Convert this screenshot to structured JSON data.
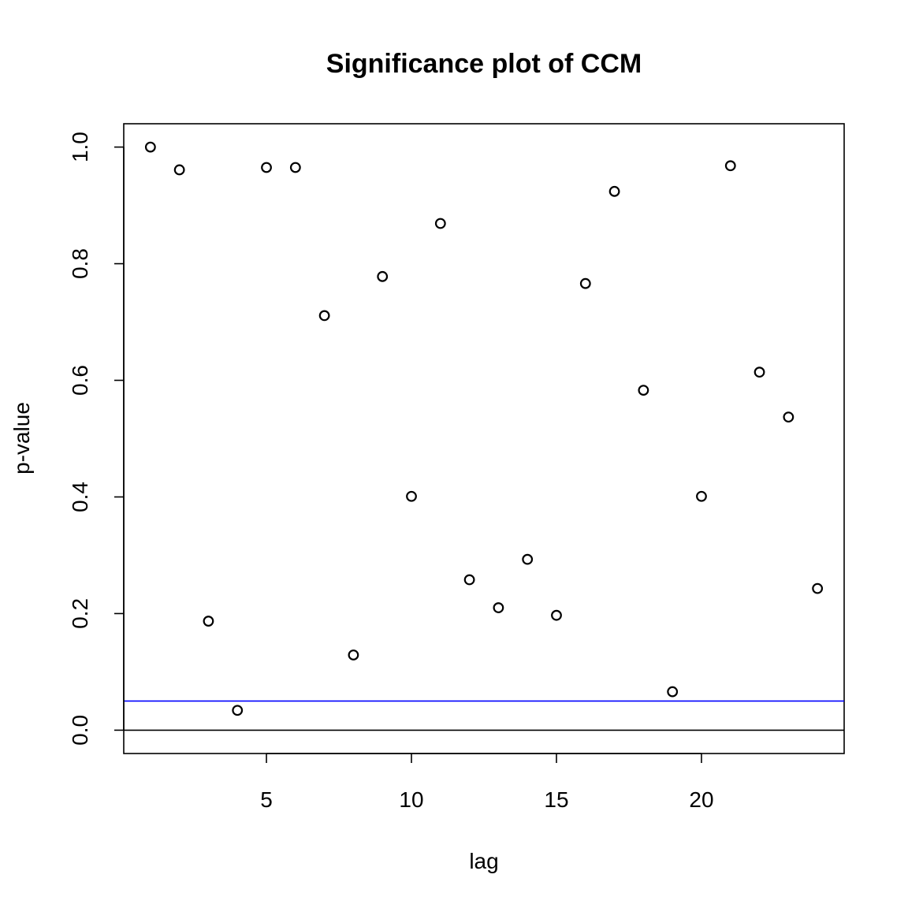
{
  "chart_data": {
    "type": "scatter",
    "title": "Significance plot of CCM",
    "xlabel": "lag",
    "ylabel": "p-value",
    "xlim": [
      0.08,
      24.92
    ],
    "ylim": [
      -0.04,
      1.04
    ],
    "x_ticks": [
      5,
      10,
      15,
      20
    ],
    "x_tick_labels": [
      "5",
      "10",
      "15",
      "20"
    ],
    "y_ticks": [
      0.0,
      0.2,
      0.4,
      0.6,
      0.8,
      1.0
    ],
    "y_tick_labels": [
      "0.0",
      "0.2",
      "0.4",
      "0.6",
      "0.8",
      "1.0"
    ],
    "x": [
      1,
      2,
      3,
      4,
      5,
      6,
      7,
      8,
      9,
      10,
      11,
      12,
      13,
      14,
      15,
      16,
      17,
      18,
      19,
      20,
      21,
      22,
      23,
      24
    ],
    "y": [
      1.0,
      0.961,
      0.187,
      0.034,
      0.965,
      0.965,
      0.711,
      0.129,
      0.778,
      0.401,
      0.869,
      0.258,
      0.21,
      0.293,
      0.197,
      0.766,
      0.924,
      0.583,
      0.066,
      0.401,
      0.968,
      0.614,
      0.537,
      0.243
    ],
    "hlines": [
      {
        "y": 0.0,
        "color": "#000000"
      },
      {
        "y": 0.05,
        "color": "#0000ff"
      }
    ],
    "grid": false,
    "legend": "none"
  }
}
